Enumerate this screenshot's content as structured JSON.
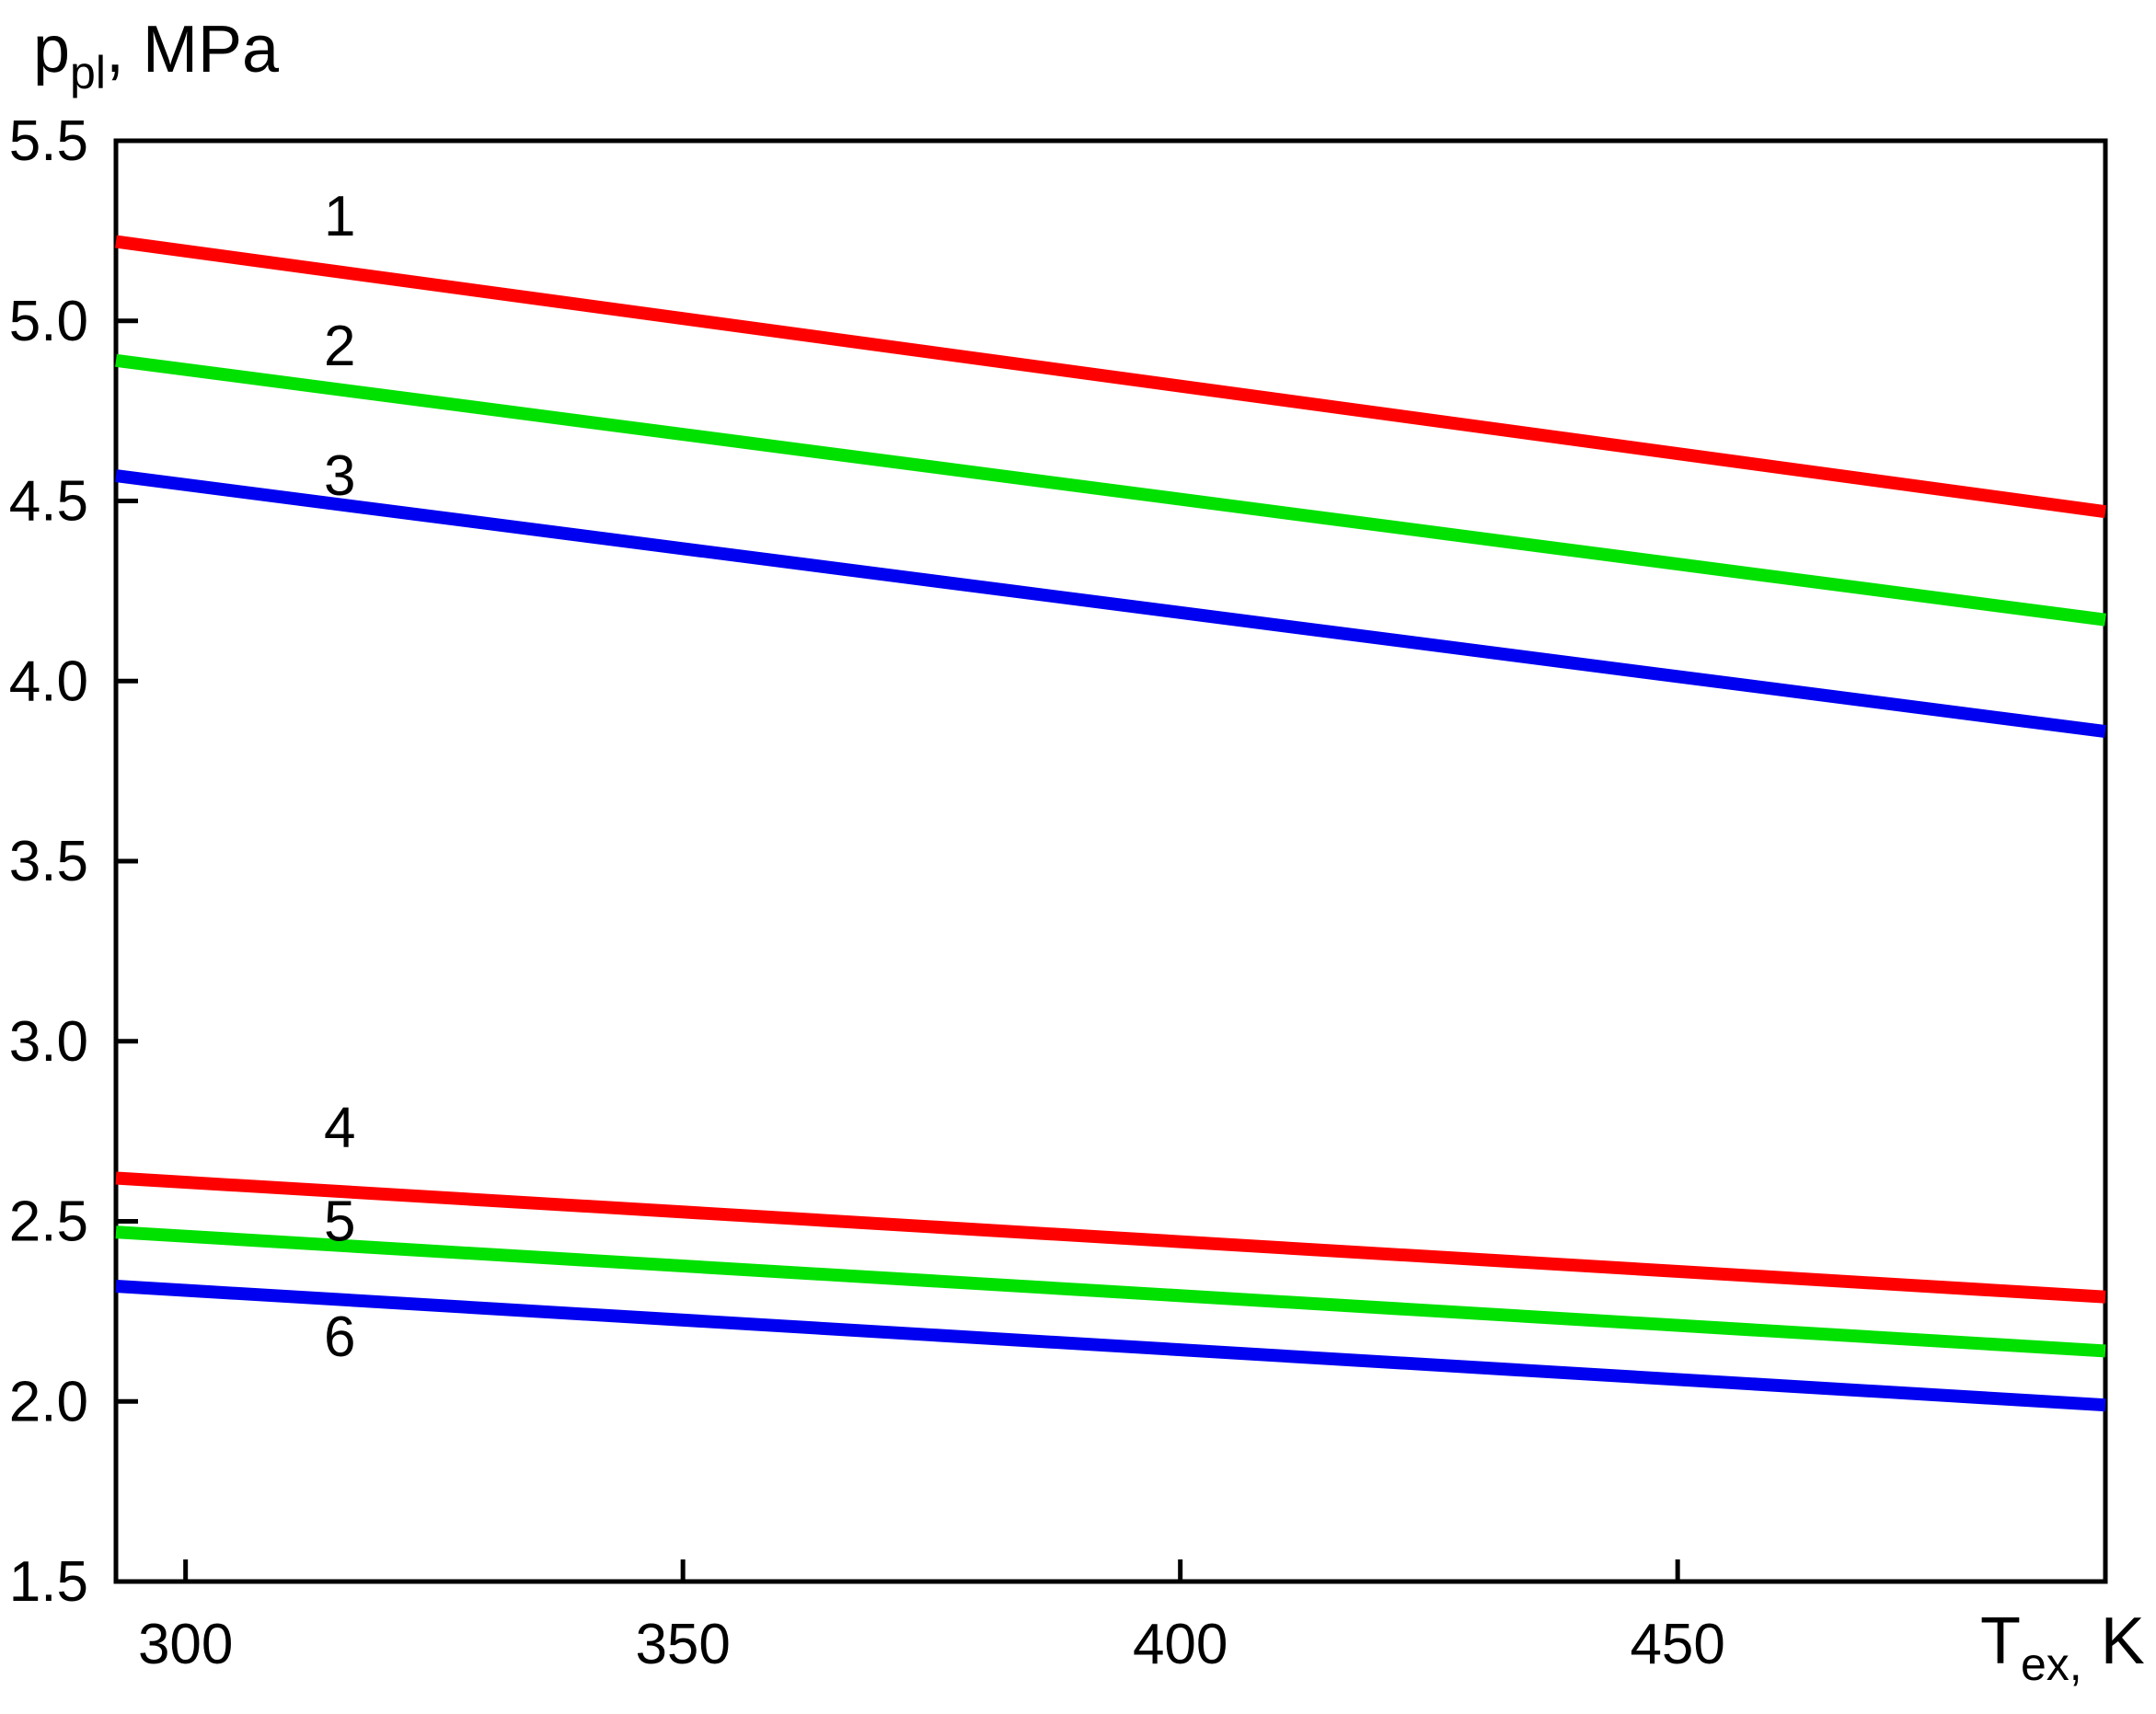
{
  "chart_data": {
    "type": "line",
    "title": "",
    "background_color": "#ffffff",
    "axis_color": "#000000",
    "legend_position": "none",
    "grid": false,
    "x_axis": {
      "title_base": "T",
      "title_sub": "ex,",
      "title_rest": " K",
      "min": 293,
      "max": 493,
      "ticks": [
        {
          "value": 300,
          "label": "300"
        },
        {
          "value": 350,
          "label": "350"
        },
        {
          "value": 400,
          "label": "400"
        },
        {
          "value": 450,
          "label": "450"
        }
      ]
    },
    "y_axis": {
      "title_base": "p",
      "title_sub": "pl",
      "title_rest": ", MPa",
      "min": 1.5,
      "max": 5.5,
      "ticks": [
        {
          "value": 5.5,
          "label": "5.5"
        },
        {
          "value": 5.0,
          "label": "5.0"
        },
        {
          "value": 4.5,
          "label": "4.5"
        },
        {
          "value": 4.0,
          "label": "4.0"
        },
        {
          "value": 3.5,
          "label": "3.5"
        },
        {
          "value": 3.0,
          "label": "3.0"
        },
        {
          "value": 2.5,
          "label": "2.5"
        },
        {
          "value": 2.0,
          "label": "2.0"
        },
        {
          "value": 1.5,
          "label": "1.5"
        }
      ]
    },
    "series": [
      {
        "name": "1",
        "color": "#ff0000",
        "points": [
          [
            293,
            5.22
          ],
          [
            493,
            4.47
          ]
        ]
      },
      {
        "name": "2",
        "color": "#00e100",
        "points": [
          [
            293,
            4.89
          ],
          [
            493,
            4.17
          ]
        ]
      },
      {
        "name": "3",
        "color": "#0000f0",
        "points": [
          [
            293,
            4.57
          ],
          [
            493,
            3.86
          ]
        ]
      },
      {
        "name": "4",
        "color": "#ff0000",
        "points": [
          [
            293,
            2.62
          ],
          [
            493,
            2.29
          ]
        ]
      },
      {
        "name": "5",
        "color": "#00e100",
        "points": [
          [
            293,
            2.47
          ],
          [
            493,
            2.14
          ]
        ]
      },
      {
        "name": "6",
        "color": "#0000f0",
        "points": [
          [
            293,
            2.32
          ],
          [
            493,
            1.99
          ]
        ]
      }
    ],
    "curve_labels": [
      {
        "text": "1",
        "T": 315.5,
        "p": 5.29
      },
      {
        "text": "2",
        "T": 315.5,
        "p": 4.93
      },
      {
        "text": "3",
        "T": 315.5,
        "p": 4.57
      },
      {
        "text": "4",
        "T": 315.5,
        "p": 2.76
      },
      {
        "text": "5",
        "T": 315.5,
        "p": 2.5
      },
      {
        "text": "6",
        "T": 315.5,
        "p": 2.18
      }
    ]
  }
}
